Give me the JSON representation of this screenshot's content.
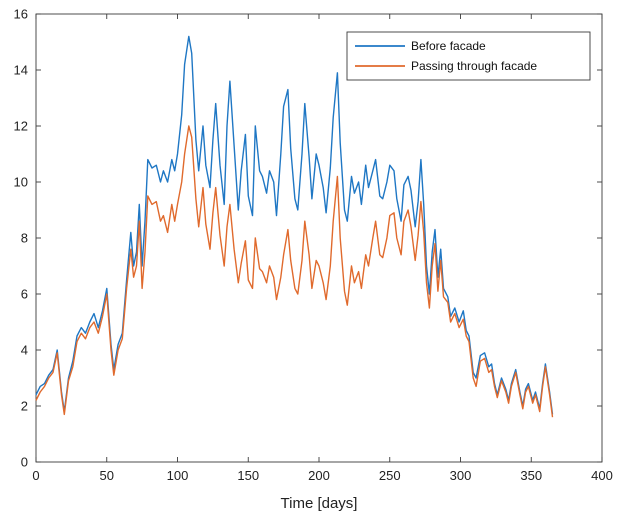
{
  "chart_data": {
    "type": "line",
    "xlabel": "Time [days]",
    "ylabel": "",
    "xlim": [
      0,
      400
    ],
    "ylim": [
      0,
      16
    ],
    "xticks": [
      "0",
      "50",
      "100",
      "150",
      "200",
      "250",
      "300",
      "350",
      "400"
    ],
    "yticks": [
      "0",
      "2",
      "4",
      "6",
      "8",
      "10",
      "12",
      "14",
      "16"
    ],
    "grid": false,
    "legend_position": "top-right",
    "series": [
      {
        "name": "Before facade",
        "color": "#1f77c4",
        "points": [
          [
            0,
            2.4
          ],
          [
            3,
            2.7
          ],
          [
            6,
            2.8
          ],
          [
            9,
            3.1
          ],
          [
            12,
            3.3
          ],
          [
            15,
            4.0
          ],
          [
            18,
            2.5
          ],
          [
            20,
            1.8
          ],
          [
            23,
            3.0
          ],
          [
            26,
            3.6
          ],
          [
            29,
            4.5
          ],
          [
            32,
            4.8
          ],
          [
            35,
            4.6
          ],
          [
            38,
            5.0
          ],
          [
            41,
            5.3
          ],
          [
            44,
            4.8
          ],
          [
            47,
            5.4
          ],
          [
            50,
            6.2
          ],
          [
            53,
            4.2
          ],
          [
            55,
            3.3
          ],
          [
            58,
            4.2
          ],
          [
            61,
            4.6
          ],
          [
            64,
            6.5
          ],
          [
            67,
            8.2
          ],
          [
            69,
            7.0
          ],
          [
            71,
            7.5
          ],
          [
            73,
            9.2
          ],
          [
            75,
            7.0
          ],
          [
            77,
            8.6
          ],
          [
            79,
            10.8
          ],
          [
            82,
            10.5
          ],
          [
            85,
            10.6
          ],
          [
            88,
            10.0
          ],
          [
            90,
            10.4
          ],
          [
            93,
            10.0
          ],
          [
            96,
            10.8
          ],
          [
            98,
            10.4
          ],
          [
            100,
            11.0
          ],
          [
            103,
            12.4
          ],
          [
            105,
            14.2
          ],
          [
            108,
            15.2
          ],
          [
            110,
            14.6
          ],
          [
            113,
            11.5
          ],
          [
            115,
            10.4
          ],
          [
            118,
            12.0
          ],
          [
            120,
            10.6
          ],
          [
            123,
            9.8
          ],
          [
            125,
            11.5
          ],
          [
            127,
            12.8
          ],
          [
            130,
            10.6
          ],
          [
            133,
            9.2
          ],
          [
            135,
            12.0
          ],
          [
            137,
            13.6
          ],
          [
            140,
            11.3
          ],
          [
            143,
            9.0
          ],
          [
            145,
            10.4
          ],
          [
            148,
            11.7
          ],
          [
            150,
            9.5
          ],
          [
            153,
            8.8
          ],
          [
            155,
            12.0
          ],
          [
            158,
            10.4
          ],
          [
            160,
            10.2
          ],
          [
            163,
            9.6
          ],
          [
            165,
            10.4
          ],
          [
            168,
            10.0
          ],
          [
            170,
            8.8
          ],
          [
            173,
            11.0
          ],
          [
            175,
            12.7
          ],
          [
            178,
            13.3
          ],
          [
            180,
            11.2
          ],
          [
            183,
            9.4
          ],
          [
            185,
            9.0
          ],
          [
            188,
            11.0
          ],
          [
            190,
            12.8
          ],
          [
            193,
            10.9
          ],
          [
            195,
            9.4
          ],
          [
            198,
            11.0
          ],
          [
            200,
            10.6
          ],
          [
            203,
            9.8
          ],
          [
            205,
            8.9
          ],
          [
            208,
            10.5
          ],
          [
            210,
            12.3
          ],
          [
            213,
            13.9
          ],
          [
            215,
            11.4
          ],
          [
            218,
            9.0
          ],
          [
            220,
            8.6
          ],
          [
            223,
            10.2
          ],
          [
            225,
            9.6
          ],
          [
            228,
            10.0
          ],
          [
            230,
            9.2
          ],
          [
            233,
            10.6
          ],
          [
            235,
            9.8
          ],
          [
            238,
            10.4
          ],
          [
            240,
            10.8
          ],
          [
            243,
            9.5
          ],
          [
            245,
            9.4
          ],
          [
            248,
            10.0
          ],
          [
            250,
            10.6
          ],
          [
            253,
            10.4
          ],
          [
            255,
            9.4
          ],
          [
            258,
            8.6
          ],
          [
            260,
            9.9
          ],
          [
            263,
            10.2
          ],
          [
            265,
            9.7
          ],
          [
            268,
            8.4
          ],
          [
            270,
            9.3
          ],
          [
            272,
            10.8
          ],
          [
            274,
            9.2
          ],
          [
            276,
            7.0
          ],
          [
            278,
            6.0
          ],
          [
            280,
            7.5
          ],
          [
            282,
            8.3
          ],
          [
            284,
            6.6
          ],
          [
            286,
            7.6
          ],
          [
            288,
            6.2
          ],
          [
            291,
            5.9
          ],
          [
            293,
            5.2
          ],
          [
            296,
            5.5
          ],
          [
            299,
            5.0
          ],
          [
            302,
            5.4
          ],
          [
            304,
            4.7
          ],
          [
            306,
            4.5
          ],
          [
            309,
            3.2
          ],
          [
            311,
            3.0
          ],
          [
            314,
            3.8
          ],
          [
            317,
            3.9
          ],
          [
            320,
            3.4
          ],
          [
            322,
            3.5
          ],
          [
            324,
            2.8
          ],
          [
            326,
            2.4
          ],
          [
            329,
            3.0
          ],
          [
            332,
            2.6
          ],
          [
            334,
            2.2
          ],
          [
            336,
            2.8
          ],
          [
            339,
            3.3
          ],
          [
            342,
            2.5
          ],
          [
            344,
            2.0
          ],
          [
            346,
            2.6
          ],
          [
            348,
            2.8
          ],
          [
            351,
            2.2
          ],
          [
            353,
            2.5
          ],
          [
            356,
            1.9
          ],
          [
            358,
            2.8
          ],
          [
            360,
            3.5
          ],
          [
            363,
            2.5
          ],
          [
            365,
            1.7
          ]
        ]
      },
      {
        "name": "Passing through facade",
        "color": "#e06a2d",
        "points": [
          [
            0,
            2.2
          ],
          [
            3,
            2.5
          ],
          [
            6,
            2.7
          ],
          [
            9,
            3.0
          ],
          [
            12,
            3.2
          ],
          [
            15,
            3.9
          ],
          [
            18,
            2.4
          ],
          [
            20,
            1.7
          ],
          [
            23,
            2.9
          ],
          [
            26,
            3.4
          ],
          [
            29,
            4.3
          ],
          [
            32,
            4.6
          ],
          [
            35,
            4.4
          ],
          [
            38,
            4.8
          ],
          [
            41,
            5.0
          ],
          [
            44,
            4.6
          ],
          [
            47,
            5.2
          ],
          [
            50,
            6.0
          ],
          [
            53,
            4.0
          ],
          [
            55,
            3.1
          ],
          [
            58,
            4.0
          ],
          [
            61,
            4.4
          ],
          [
            64,
            6.2
          ],
          [
            67,
            7.6
          ],
          [
            69,
            6.6
          ],
          [
            71,
            7.0
          ],
          [
            73,
            8.6
          ],
          [
            75,
            6.2
          ],
          [
            77,
            7.5
          ],
          [
            79,
            9.5
          ],
          [
            82,
            9.2
          ],
          [
            85,
            9.3
          ],
          [
            88,
            8.6
          ],
          [
            90,
            8.8
          ],
          [
            93,
            8.2
          ],
          [
            96,
            9.2
          ],
          [
            98,
            8.6
          ],
          [
            100,
            9.2
          ],
          [
            103,
            10.0
          ],
          [
            105,
            11.0
          ],
          [
            108,
            12.0
          ],
          [
            110,
            11.6
          ],
          [
            113,
            9.4
          ],
          [
            115,
            8.4
          ],
          [
            118,
            9.8
          ],
          [
            120,
            8.5
          ],
          [
            123,
            7.6
          ],
          [
            125,
            8.9
          ],
          [
            127,
            9.8
          ],
          [
            130,
            8.1
          ],
          [
            133,
            7.0
          ],
          [
            135,
            8.4
          ],
          [
            137,
            9.2
          ],
          [
            140,
            7.6
          ],
          [
            143,
            6.4
          ],
          [
            145,
            7.1
          ],
          [
            148,
            7.9
          ],
          [
            150,
            6.5
          ],
          [
            153,
            6.2
          ],
          [
            155,
            8.0
          ],
          [
            158,
            6.9
          ],
          [
            160,
            6.8
          ],
          [
            163,
            6.4
          ],
          [
            165,
            7.0
          ],
          [
            168,
            6.6
          ],
          [
            170,
            5.8
          ],
          [
            173,
            6.6
          ],
          [
            175,
            7.4
          ],
          [
            178,
            8.3
          ],
          [
            180,
            7.2
          ],
          [
            183,
            6.2
          ],
          [
            185,
            6.0
          ],
          [
            188,
            7.2
          ],
          [
            190,
            8.6
          ],
          [
            193,
            7.4
          ],
          [
            195,
            6.2
          ],
          [
            198,
            7.2
          ],
          [
            200,
            7.0
          ],
          [
            203,
            6.4
          ],
          [
            205,
            5.8
          ],
          [
            208,
            7.0
          ],
          [
            210,
            8.6
          ],
          [
            213,
            10.2
          ],
          [
            215,
            8.0
          ],
          [
            218,
            6.1
          ],
          [
            220,
            5.6
          ],
          [
            223,
            7.0
          ],
          [
            225,
            6.4
          ],
          [
            228,
            6.8
          ],
          [
            230,
            6.2
          ],
          [
            233,
            7.4
          ],
          [
            235,
            7.0
          ],
          [
            238,
            8.0
          ],
          [
            240,
            8.6
          ],
          [
            243,
            7.4
          ],
          [
            245,
            7.3
          ],
          [
            248,
            8.0
          ],
          [
            250,
            8.8
          ],
          [
            253,
            8.9
          ],
          [
            255,
            8.0
          ],
          [
            258,
            7.4
          ],
          [
            260,
            8.6
          ],
          [
            263,
            9.0
          ],
          [
            265,
            8.4
          ],
          [
            268,
            7.2
          ],
          [
            270,
            8.1
          ],
          [
            272,
            9.3
          ],
          [
            274,
            8.2
          ],
          [
            276,
            6.4
          ],
          [
            278,
            5.5
          ],
          [
            280,
            7.0
          ],
          [
            282,
            7.8
          ],
          [
            284,
            6.1
          ],
          [
            286,
            7.2
          ],
          [
            288,
            5.9
          ],
          [
            291,
            5.7
          ],
          [
            293,
            5.0
          ],
          [
            296,
            5.3
          ],
          [
            299,
            4.8
          ],
          [
            302,
            5.1
          ],
          [
            304,
            4.5
          ],
          [
            306,
            4.3
          ],
          [
            309,
            3.0
          ],
          [
            311,
            2.7
          ],
          [
            314,
            3.6
          ],
          [
            317,
            3.7
          ],
          [
            320,
            3.2
          ],
          [
            322,
            3.3
          ],
          [
            324,
            2.7
          ],
          [
            326,
            2.3
          ],
          [
            329,
            2.9
          ],
          [
            332,
            2.5
          ],
          [
            334,
            2.1
          ],
          [
            336,
            2.7
          ],
          [
            339,
            3.2
          ],
          [
            342,
            2.4
          ],
          [
            344,
            1.9
          ],
          [
            346,
            2.5
          ],
          [
            348,
            2.7
          ],
          [
            351,
            2.1
          ],
          [
            353,
            2.4
          ],
          [
            356,
            1.8
          ],
          [
            358,
            2.7
          ],
          [
            360,
            3.4
          ],
          [
            363,
            2.4
          ],
          [
            365,
            1.6
          ]
        ]
      }
    ]
  }
}
